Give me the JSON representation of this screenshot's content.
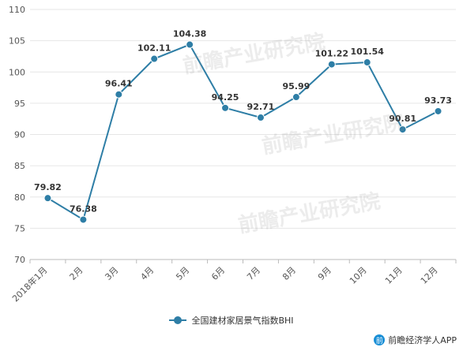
{
  "chart_data": {
    "type": "line",
    "categories": [
      "2018年1月",
      "2月",
      "3月",
      "4月",
      "5月",
      "6月",
      "7月",
      "8月",
      "9月",
      "10月",
      "11月",
      "12月"
    ],
    "series": [
      {
        "name": "全国建材家居景气指数BHI",
        "values": [
          79.82,
          76.38,
          96.41,
          102.11,
          104.38,
          94.25,
          92.71,
          95.99,
          101.22,
          101.54,
          90.81,
          93.73
        ],
        "color": "#2e7ea6"
      }
    ],
    "ylim": [
      70,
      110
    ],
    "yticks": [
      70,
      75,
      80,
      85,
      90,
      95,
      100,
      105,
      110
    ],
    "grid": true,
    "legend_position": "bottom"
  },
  "watermark": {
    "text": "前瞻产业研究院"
  },
  "attribution": {
    "text": "前瞻经济学人APP"
  }
}
